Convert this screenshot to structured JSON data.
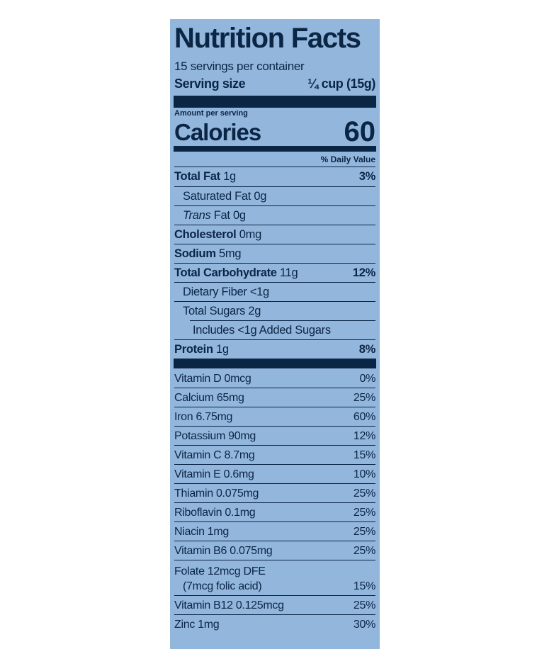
{
  "title": "Nutrition Facts",
  "servings": "15 servings per container",
  "serving_size": {
    "label": "Serving size",
    "value": "¼ cup (15g)"
  },
  "amount_per_serving": "Amount per serving",
  "calories": {
    "label": "Calories",
    "value": "60"
  },
  "daily_value_header": "% Daily Value",
  "nutrients": [
    {
      "name": "Total Fat",
      "amount": "1g",
      "dv": "3%",
      "indent": 0
    },
    {
      "amount": "Saturated Fat 0g",
      "indent": 1
    },
    {
      "italic": "Trans",
      "amount": "Fat 0g",
      "indent": 1
    },
    {
      "name": "Cholesterol",
      "amount": "0mg",
      "indent": 0
    },
    {
      "name": "Sodium",
      "amount": "5mg",
      "indent": 0
    },
    {
      "name": "Total Carbohydrate",
      "amount": "11g",
      "dv": "12%",
      "indent": 0
    },
    {
      "amount": "Dietary Fiber <1g",
      "indent": 1
    },
    {
      "amount": "Total Sugars 2g",
      "indent": 1
    },
    {
      "amount": "Includes <1g Added Sugars",
      "indent": 2
    },
    {
      "name": "Protein",
      "amount": "1g",
      "dv": "8%",
      "indent": 0
    }
  ],
  "vitamins": [
    {
      "lines": [
        "Vitamin D 0mcg"
      ],
      "dv": "0%"
    },
    {
      "lines": [
        "Calcium 65mg"
      ],
      "dv": "25%"
    },
    {
      "lines": [
        "Iron 6.75mg"
      ],
      "dv": "60%"
    },
    {
      "lines": [
        "Potassium 90mg"
      ],
      "dv": "12%"
    },
    {
      "lines": [
        "Vitamin C 8.7mg"
      ],
      "dv": "15%"
    },
    {
      "lines": [
        "Vitamin E 0.6mg"
      ],
      "dv": "10%"
    },
    {
      "lines": [
        "Thiamin 0.075mg"
      ],
      "dv": "25%"
    },
    {
      "lines": [
        "Riboflavin 0.1mg"
      ],
      "dv": "25%"
    },
    {
      "lines": [
        "Niacin 1mg"
      ],
      "dv": "25%"
    },
    {
      "lines": [
        "Vitamin B6 0.075mg"
      ],
      "dv": "25%"
    },
    {
      "lines": [
        "Folate 12mcg DFE",
        "(7mcg folic acid)"
      ],
      "dv": "15%"
    },
    {
      "lines": [
        "Vitamin B12 0.125mcg"
      ],
      "dv": "25%"
    },
    {
      "lines": [
        "Zinc 1mg"
      ],
      "dv": "30%"
    }
  ]
}
